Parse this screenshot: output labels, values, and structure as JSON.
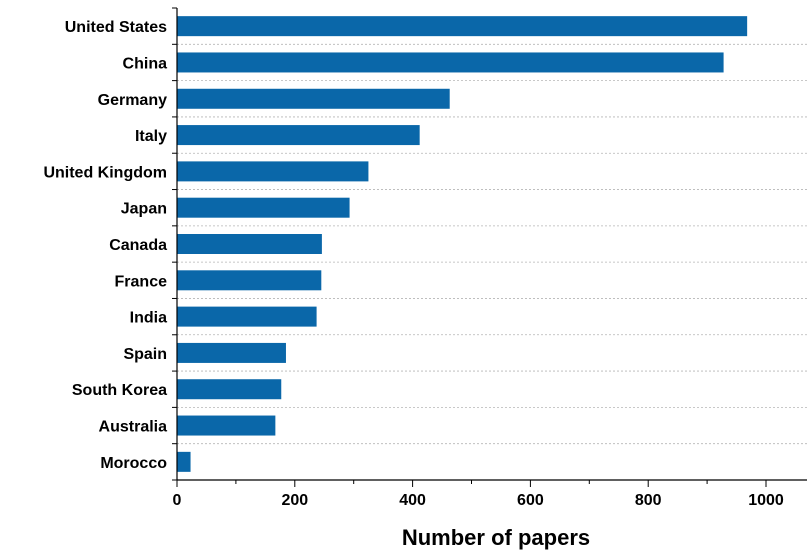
{
  "chart_data": {
    "type": "bar",
    "orientation": "horizontal",
    "categories": [
      "United States",
      "China",
      "Germany",
      "Italy",
      "United Kingdom",
      "Japan",
      "Canada",
      "France",
      "India",
      "Spain",
      "South Korea",
      "Australia",
      "Morocco"
    ],
    "values": [
      968,
      928,
      463,
      412,
      325,
      293,
      246,
      245,
      237,
      185,
      177,
      167,
      23
    ],
    "xlabel": "Number of papers",
    "ylabel": "",
    "xlim": [
      0,
      1060
    ],
    "xticks": [
      0,
      200,
      400,
      600,
      800,
      1000
    ],
    "grid": "horizontal-dashed",
    "bar_color": "#0a67a9"
  }
}
